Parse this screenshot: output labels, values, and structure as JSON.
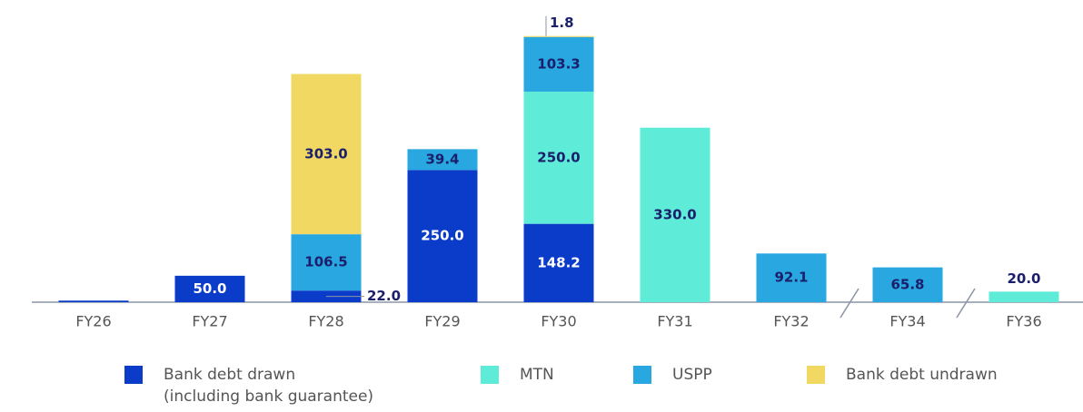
{
  "chart_data": {
    "type": "stacked_bar",
    "categories": [
      "FY26",
      "FY27",
      "FY28",
      "FY29",
      "FY30",
      "FY31",
      "FY32",
      "FY34",
      "FY36"
    ],
    "ylim": [
      0,
      520
    ],
    "series": [
      {
        "name": "Bank debt drawn\n(including bank guarantee)",
        "color": "#0b3cc9",
        "values": [
          3,
          50,
          22,
          250,
          148.2,
          null,
          null,
          null,
          null
        ],
        "value_labels": [
          null,
          "50.0",
          "22.0",
          "250.0",
          "148.2",
          null,
          null,
          null,
          null
        ]
      },
      {
        "name": "MTN",
        "color": "#5eecd8",
        "values": [
          null,
          null,
          null,
          null,
          250,
          330,
          null,
          null,
          20
        ],
        "value_labels": [
          null,
          null,
          null,
          null,
          "250.0",
          "330.0",
          null,
          null,
          "20.0"
        ]
      },
      {
        "name": "USPP",
        "color": "#29a7e1",
        "values": [
          null,
          null,
          106.5,
          39.4,
          103.3,
          null,
          92.1,
          65.8,
          null
        ],
        "value_labels": [
          null,
          null,
          "106.5",
          "39.4",
          "103.3",
          null,
          "92.1",
          "65.8",
          null
        ]
      },
      {
        "name": "Bank debt undrawn",
        "color": "#f0d862",
        "values": [
          null,
          null,
          303,
          null,
          1.8,
          null,
          null,
          null,
          null
        ],
        "value_labels": [
          null,
          null,
          "303.0",
          null,
          "1.8",
          null,
          null,
          null,
          null
        ]
      }
    ]
  }
}
